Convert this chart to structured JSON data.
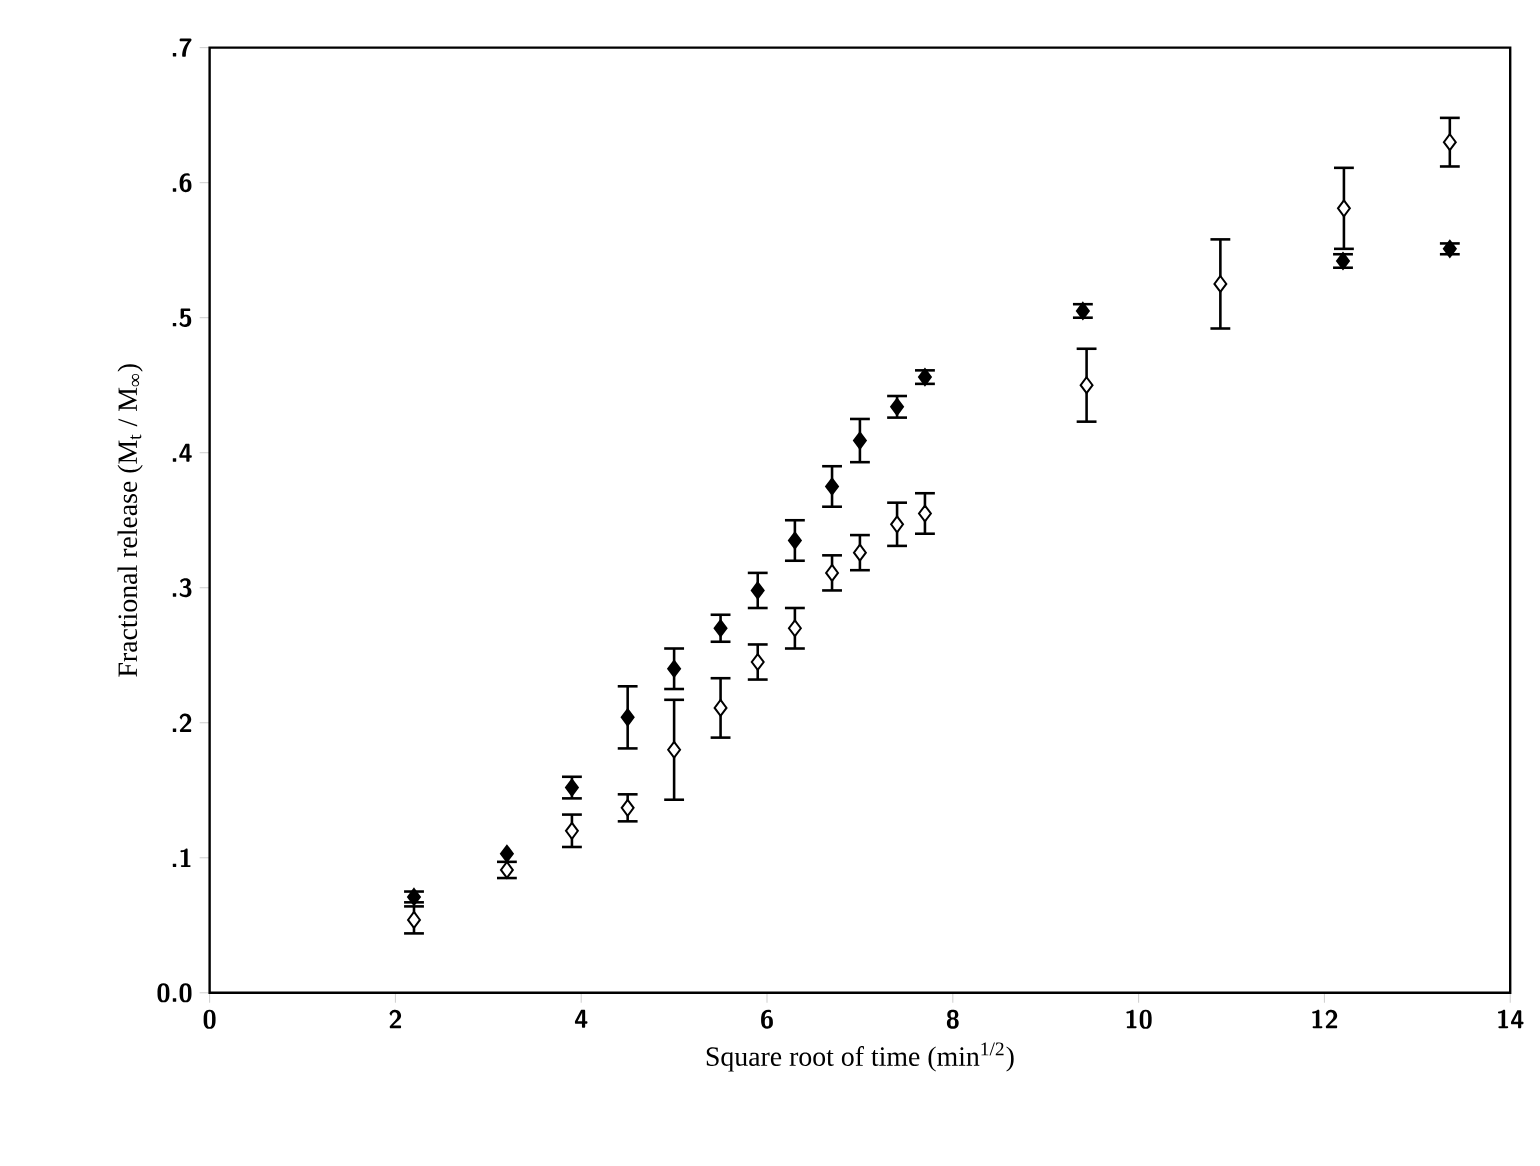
{
  "chart_data": {
    "type": "scatter",
    "xlabel": "Square root of time (min$^{1/2}$)",
    "ylabel": "Fractional release (M$_{t}$ / M$_{∞}$)",
    "xlim": [
      0,
      14
    ],
    "xticks": [
      0,
      2,
      4,
      6,
      8,
      10,
      12,
      14
    ],
    "ylim": [
      0,
      0.7
    ],
    "yticks": [
      {
        "value": 0,
        "label": "0.0"
      },
      {
        "value": 0.1,
        "label": ".1"
      },
      {
        "value": 0.2,
        "label": ".2"
      },
      {
        "value": 0.3,
        "label": ".3"
      },
      {
        "value": 0.4,
        "label": ".4"
      },
      {
        "value": 0.5,
        "label": ".5"
      },
      {
        "value": 0.6,
        "label": ".6"
      },
      {
        "value": 0.7,
        "label": ".7"
      }
    ],
    "grid": false,
    "marker": "diamond",
    "series": [
      {
        "color": "#000000",
        "x": [
          2.2,
          3.2,
          3.9,
          4.5,
          5.0,
          5.5,
          5.9,
          6.3,
          6.7,
          7.0,
          7.4,
          7.7,
          9.4,
          12.2,
          13.35
        ],
        "values": [
          0.071,
          0.103,
          0.152,
          0.204,
          0.24,
          0.27,
          0.298,
          0.335,
          0.375,
          0.409,
          0.434,
          0.456,
          0.505,
          0.542,
          0.551
        ],
        "errors": [
          0.004,
          null,
          0.008,
          0.023,
          0.015,
          0.01,
          0.013,
          0.015,
          0.015,
          0.016,
          0.008,
          0.005,
          0.005,
          0.005,
          0.004
        ]
      },
      {
        "color": "#ffffff",
        "x": [
          2.2,
          3.2,
          3.9,
          4.5,
          5.0,
          5.5,
          5.9,
          6.3,
          6.7,
          7.0,
          7.4,
          7.7,
          9.44,
          10.88,
          12.21,
          13.35
        ],
        "values": [
          0.054,
          0.091,
          0.12,
          0.137,
          0.18,
          0.211,
          0.245,
          0.27,
          0.311,
          0.326,
          0.347,
          0.355,
          0.45,
          0.525,
          0.581,
          0.63
        ],
        "errors": [
          0.01,
          0.006,
          0.012,
          0.01,
          0.037,
          0.022,
          0.013,
          0.015,
          0.013,
          0.013,
          0.016,
          0.015,
          0.027,
          0.033,
          0.03,
          0.018
        ]
      }
    ]
  }
}
